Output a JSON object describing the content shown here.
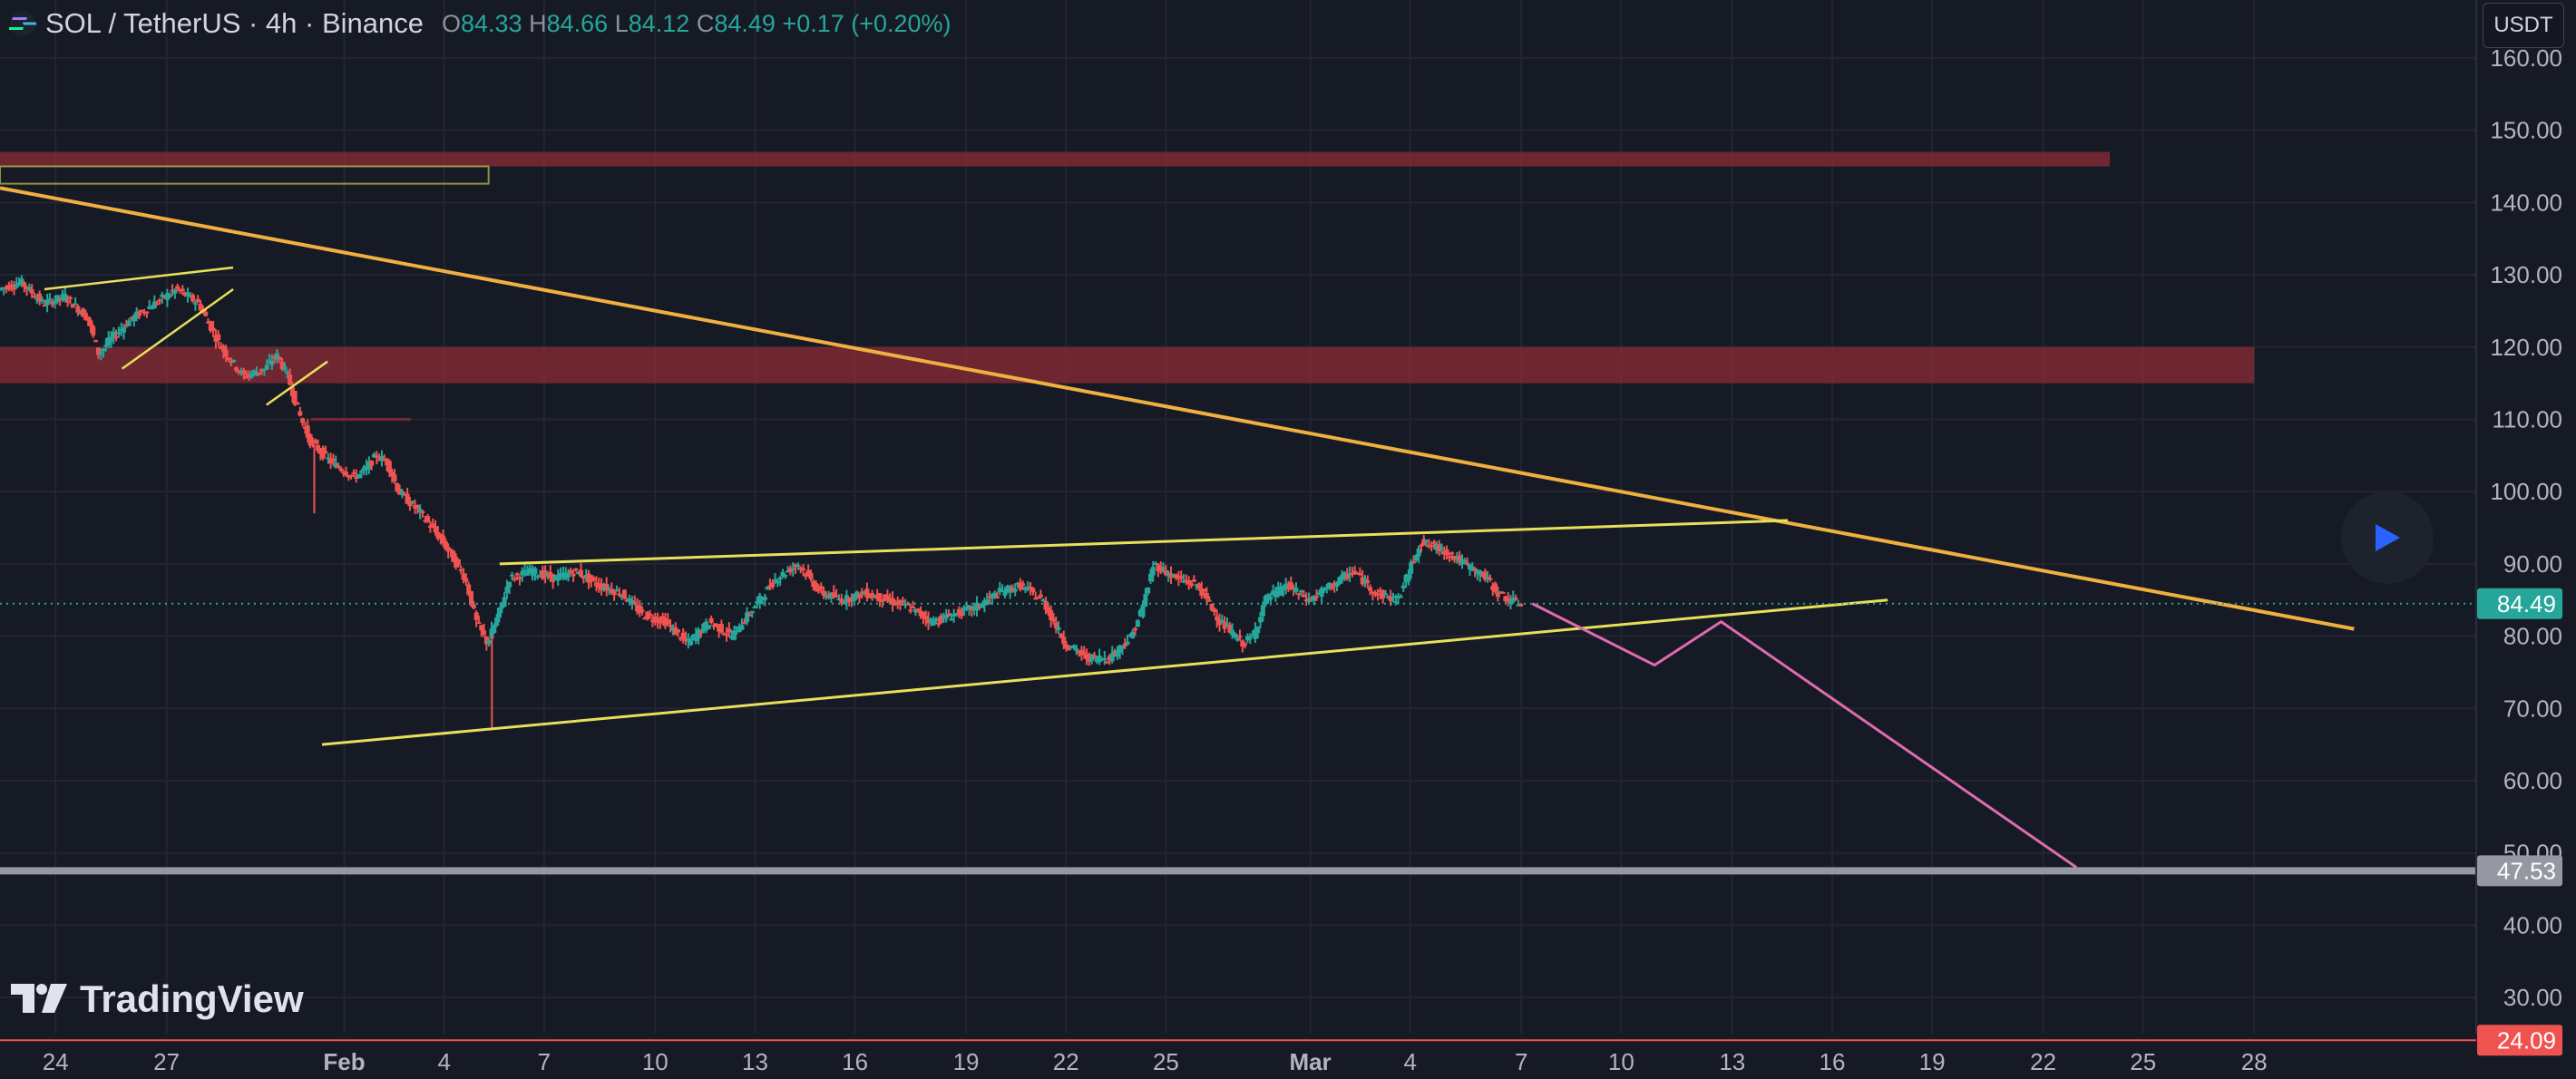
{
  "header": {
    "symbol": "SOL / TetherUS · 4h · Binance",
    "o_label": "O",
    "o_value": "84.33",
    "h_label": "H",
    "h_value": "84.66",
    "l_label": "L",
    "l_value": "84.12",
    "c_label": "C",
    "c_value": "84.49",
    "change": "+0.17 (+0.20%)"
  },
  "currency_button": "USDT",
  "watermark": "TradingView",
  "icons": {
    "symbol": "solana-icon",
    "play": "play-icon",
    "logo": "tradingview-logo-icon"
  },
  "colors": {
    "background": "#161a25",
    "up": "#26a69a",
    "down": "#ef5350",
    "trendline": "#f0b040",
    "channel": "#e7e05a",
    "zone": "#8c2c36",
    "projection": "#e06bb0",
    "level": "#9598a1"
  },
  "chart_data": {
    "type": "candlestick",
    "title": "SOL / TetherUS · 4h · Binance",
    "y_axis": {
      "range": [
        25,
        163
      ],
      "ticks": [
        30,
        40,
        50,
        60,
        70,
        80,
        90,
        100,
        110,
        120,
        130,
        140,
        150,
        160
      ],
      "tick_labels": [
        "30.00",
        "40.00",
        "50.00",
        "60.00",
        "70.00",
        "80.00",
        "90.00",
        "100.00",
        "110.00",
        "120.00",
        "130.00",
        "140.00",
        "150.00",
        "160.00"
      ]
    },
    "x_axis": {
      "tick_labels": [
        "24",
        "27",
        "Feb",
        "4",
        "7",
        "10",
        "13",
        "16",
        "19",
        "22",
        "25",
        "Mar",
        "4",
        "7",
        "10",
        "13",
        "16",
        "19",
        "22",
        "25",
        "28"
      ]
    },
    "price_labels": [
      {
        "value": 84.49,
        "text": "84.49",
        "color": "#26a69a"
      },
      {
        "value": 47.53,
        "text": "47.53",
        "color": "#9598a1"
      },
      {
        "value": 24.09,
        "text": "24.09",
        "color": "#ef5350"
      }
    ],
    "price_path": [
      [
        0,
        128
      ],
      [
        2,
        129
      ],
      [
        4,
        126
      ],
      [
        6,
        127
      ],
      [
        8,
        124
      ],
      [
        9,
        119
      ],
      [
        10,
        121
      ],
      [
        12,
        124
      ],
      [
        14,
        126
      ],
      [
        16,
        128
      ],
      [
        18,
        126
      ],
      [
        20,
        120
      ],
      [
        22,
        116
      ],
      [
        24,
        117
      ],
      [
        25,
        119
      ],
      [
        26,
        116
      ],
      [
        27,
        111
      ],
      [
        28,
        107
      ],
      [
        30,
        104
      ],
      [
        32,
        102
      ],
      [
        33,
        103
      ],
      [
        34,
        105
      ],
      [
        35,
        104
      ],
      [
        36,
        100
      ],
      [
        38,
        97
      ],
      [
        40,
        93
      ],
      [
        42,
        88
      ],
      [
        43,
        82
      ],
      [
        44,
        79
      ],
      [
        45,
        83
      ],
      [
        46,
        88
      ],
      [
        48,
        89
      ],
      [
        50,
        88
      ],
      [
        52,
        89
      ],
      [
        54,
        87
      ],
      [
        56,
        86
      ],
      [
        58,
        83
      ],
      [
        60,
        82
      ],
      [
        62,
        79
      ],
      [
        64,
        82
      ],
      [
        66,
        80
      ],
      [
        68,
        84
      ],
      [
        70,
        88
      ],
      [
        72,
        90
      ],
      [
        74,
        86
      ],
      [
        76,
        85
      ],
      [
        78,
        86
      ],
      [
        80,
        85
      ],
      [
        82,
        84
      ],
      [
        84,
        82
      ],
      [
        86,
        83
      ],
      [
        88,
        84
      ],
      [
        90,
        86
      ],
      [
        92,
        87
      ],
      [
        94,
        85
      ],
      [
        96,
        79
      ],
      [
        98,
        77
      ],
      [
        100,
        77
      ],
      [
        102,
        80
      ],
      [
        103,
        84
      ],
      [
        104,
        90
      ],
      [
        106,
        88
      ],
      [
        108,
        87
      ],
      [
        110,
        82
      ],
      [
        112,
        79
      ],
      [
        113,
        80
      ],
      [
        114,
        85
      ],
      [
        116,
        87
      ],
      [
        118,
        85
      ],
      [
        120,
        87
      ],
      [
        122,
        89
      ],
      [
        124,
        86
      ],
      [
        126,
        85
      ],
      [
        127,
        89
      ],
      [
        128,
        93
      ],
      [
        130,
        92
      ],
      [
        132,
        90
      ],
      [
        134,
        88
      ],
      [
        135,
        86
      ],
      [
        136,
        85
      ],
      [
        137,
        84.49
      ]
    ],
    "zones": [
      {
        "x0": 0,
        "x1": 190,
        "y0": 145,
        "y1": 147
      },
      {
        "x0": 0,
        "x1": 203,
        "y0": 115,
        "y1": 120
      },
      {
        "x0": 28,
        "x1": 37,
        "y0": 109.8,
        "y1": 110.2
      }
    ],
    "zone_outline": {
      "x0": 0,
      "x1": 44,
      "y0": 142.6,
      "y1": 145
    },
    "trendline": [
      [
        0,
        142
      ],
      [
        212,
        81
      ]
    ],
    "channel_upper": [
      [
        45,
        90
      ],
      [
        161,
        96
      ]
    ],
    "channel_lower": [
      [
        29,
        65
      ],
      [
        170,
        85
      ]
    ],
    "small_channels": [
      [
        [
          4,
          128
        ],
        [
          21,
          131
        ]
      ],
      [
        [
          11,
          117
        ],
        [
          21,
          128
        ]
      ],
      [
        [
          24,
          112
        ],
        [
          29.5,
          118
        ]
      ]
    ],
    "projection": [
      [
        138,
        84.5
      ],
      [
        149,
        76
      ],
      [
        155,
        82
      ],
      [
        187,
        48
      ]
    ],
    "support_level": 47.53,
    "x_range": [
      0,
      223
    ],
    "x_ticks": [
      5,
      15,
      31,
      40,
      49,
      59,
      68,
      77,
      87,
      96,
      105,
      118,
      127,
      137,
      146,
      156,
      165,
      174,
      184,
      193,
      203
    ]
  }
}
